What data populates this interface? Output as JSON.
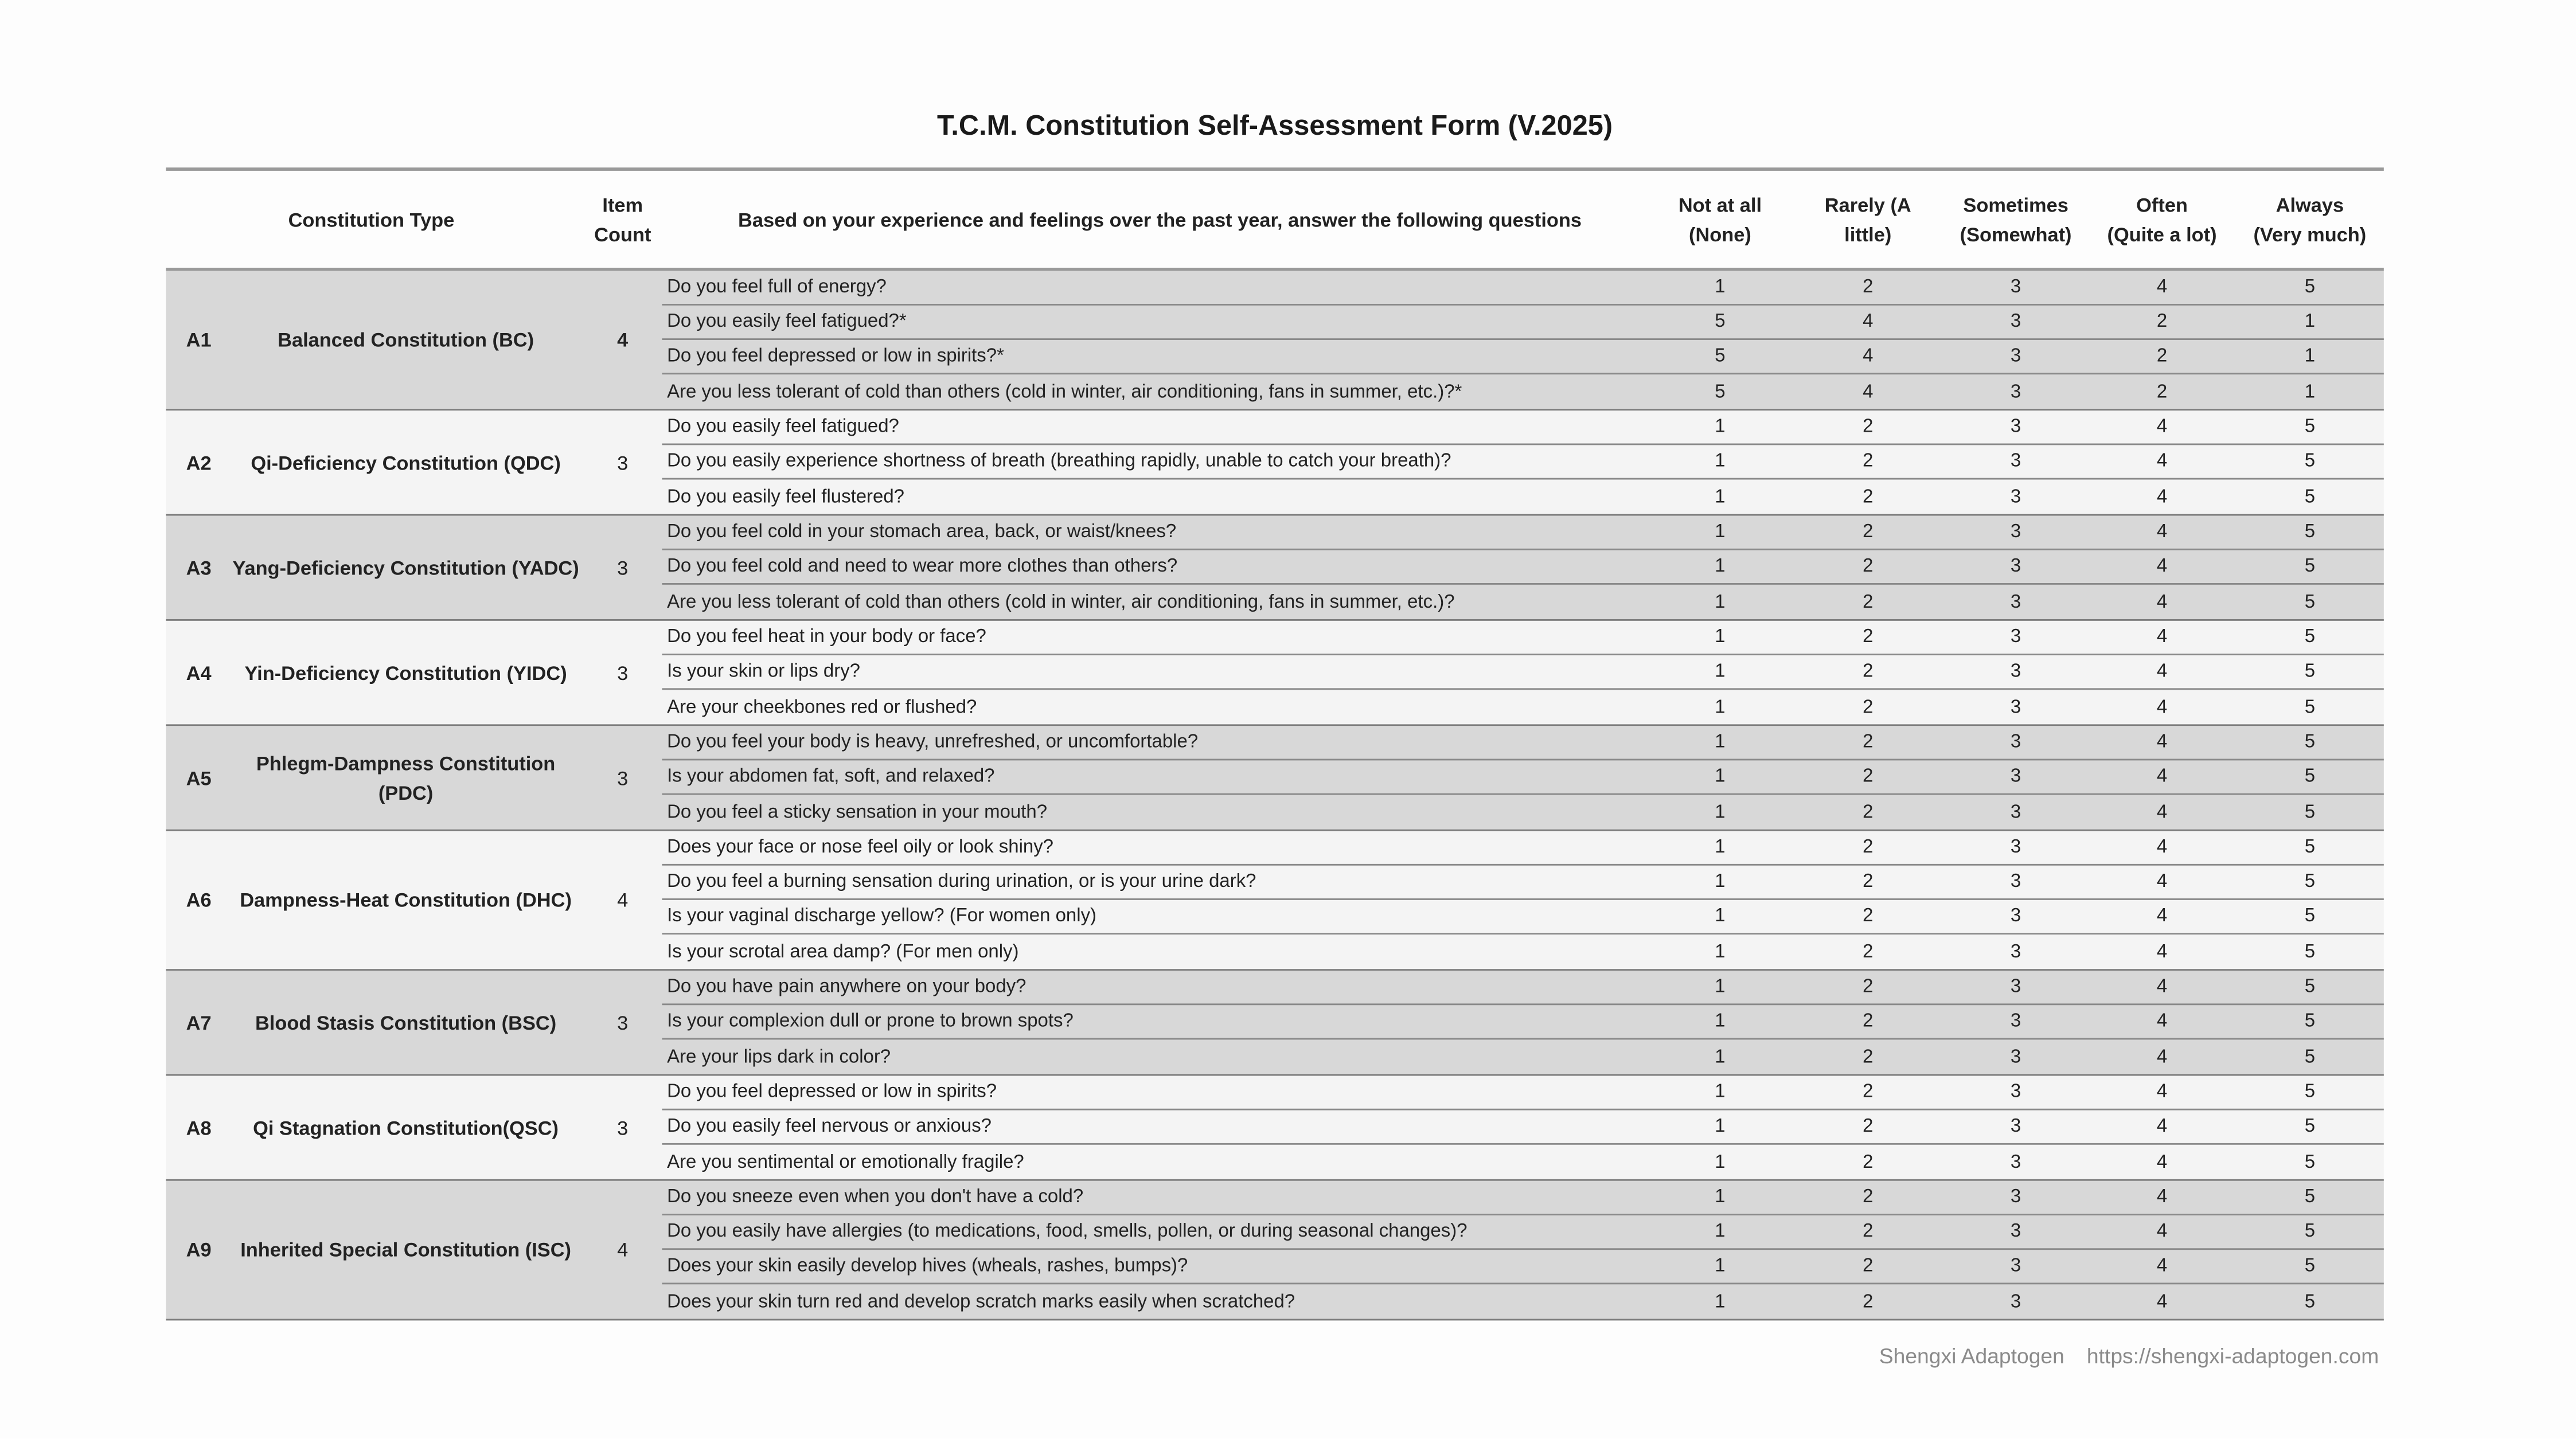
{
  "title": "T.C.M. Constitution Self-Assessment Form (V.2025)",
  "headers": {
    "type": "Constitution Type",
    "count_1": "Item",
    "count_2": "Count",
    "question": "Based on your experience and feelings over the past year, answer the following questions",
    "scale": [
      [
        "Not at all",
        "(None)"
      ],
      [
        "Rarely (A",
        "little)"
      ],
      [
        "Sometimes",
        "(Somewhat)"
      ],
      [
        "Often",
        "(Quite a lot)"
      ],
      [
        "Always",
        "(Very much)"
      ]
    ]
  },
  "groups": [
    {
      "code": "A1",
      "type": "Balanced Constitution (BC)",
      "count": "4",
      "questions": [
        {
          "text": "Do you feel full of energy?",
          "scores": [
            "1",
            "2",
            "3",
            "4",
            "5"
          ]
        },
        {
          "text": "Do you easily feel fatigued?*",
          "scores": [
            "5",
            "4",
            "3",
            "2",
            "1"
          ]
        },
        {
          "text": "Do you feel depressed or low in spirits?*",
          "scores": [
            "5",
            "4",
            "3",
            "2",
            "1"
          ]
        },
        {
          "text": "Are you less tolerant of cold than others (cold in winter, air conditioning, fans in summer, etc.)?*",
          "scores": [
            "5",
            "4",
            "3",
            "2",
            "1"
          ]
        }
      ]
    },
    {
      "code": "A2",
      "type": "Qi-Deficiency Constitution (QDC)",
      "count": "3",
      "questions": [
        {
          "text": "Do you easily feel fatigued?",
          "scores": [
            "1",
            "2",
            "3",
            "4",
            "5"
          ]
        },
        {
          "text": "Do you easily experience shortness of breath (breathing rapidly, unable to catch your breath)?",
          "scores": [
            "1",
            "2",
            "3",
            "4",
            "5"
          ]
        },
        {
          "text": "Do you easily feel flustered?",
          "scores": [
            "1",
            "2",
            "3",
            "4",
            "5"
          ]
        }
      ]
    },
    {
      "code": "A3",
      "type": "Yang-Deficiency Constitution (YADC)",
      "count": "3",
      "questions": [
        {
          "text": "Do you feel cold in your stomach area, back, or waist/knees?",
          "scores": [
            "1",
            "2",
            "3",
            "4",
            "5"
          ]
        },
        {
          "text": "Do you feel cold and need to wear more clothes than others?",
          "scores": [
            "1",
            "2",
            "3",
            "4",
            "5"
          ]
        },
        {
          "text": "Are you less tolerant of cold than others (cold in winter, air conditioning, fans in summer, etc.)?",
          "scores": [
            "1",
            "2",
            "3",
            "4",
            "5"
          ]
        }
      ]
    },
    {
      "code": "A4",
      "type": "Yin-Deficiency Constitution (YIDC)",
      "count": "3",
      "questions": [
        {
          "text": "Do you feel heat in your body or face?",
          "scores": [
            "1",
            "2",
            "3",
            "4",
            "5"
          ]
        },
        {
          "text": "Is your skin or lips dry?",
          "scores": [
            "1",
            "2",
            "3",
            "4",
            "5"
          ]
        },
        {
          "text": "Are your cheekbones red or flushed?",
          "scores": [
            "1",
            "2",
            "3",
            "4",
            "5"
          ]
        }
      ]
    },
    {
      "code": "A5",
      "type": "Phlegm-Dampness Constitution (PDC)",
      "count": "3",
      "questions": [
        {
          "text": "Do you feel your body is heavy, unrefreshed, or uncomfortable?",
          "scores": [
            "1",
            "2",
            "3",
            "4",
            "5"
          ]
        },
        {
          "text": "Is your abdomen fat, soft, and relaxed?",
          "scores": [
            "1",
            "2",
            "3",
            "4",
            "5"
          ]
        },
        {
          "text": "Do you feel a sticky sensation in your mouth?",
          "scores": [
            "1",
            "2",
            "3",
            "4",
            "5"
          ]
        }
      ]
    },
    {
      "code": "A6",
      "type": "Dampness-Heat Constitution (DHC)",
      "count": "4",
      "questions": [
        {
          "text": "Does your face or nose feel oily or look shiny?",
          "scores": [
            "1",
            "2",
            "3",
            "4",
            "5"
          ]
        },
        {
          "text": "Do you feel a burning sensation during urination, or is your urine dark?",
          "scores": [
            "1",
            "2",
            "3",
            "4",
            "5"
          ]
        },
        {
          "text": "Is your vaginal discharge yellow? (For women only)",
          "scores": [
            "1",
            "2",
            "3",
            "4",
            "5"
          ]
        },
        {
          "text": "Is your scrotal area damp? (For men only)",
          "scores": [
            "1",
            "2",
            "3",
            "4",
            "5"
          ]
        }
      ]
    },
    {
      "code": "A7",
      "type": "Blood Stasis Constitution (BSC)",
      "count": "3",
      "questions": [
        {
          "text": "Do you have pain anywhere on your body?",
          "scores": [
            "1",
            "2",
            "3",
            "4",
            "5"
          ]
        },
        {
          "text": "Is your complexion dull or prone to brown spots?",
          "scores": [
            "1",
            "2",
            "3",
            "4",
            "5"
          ]
        },
        {
          "text": "Are your lips dark in color?",
          "scores": [
            "1",
            "2",
            "3",
            "4",
            "5"
          ]
        }
      ]
    },
    {
      "code": "A8",
      "type": "Qi Stagnation Constitution(QSC)",
      "count": "3",
      "questions": [
        {
          "text": "Do you feel depressed or low in spirits?",
          "scores": [
            "1",
            "2",
            "3",
            "4",
            "5"
          ]
        },
        {
          "text": "Do you easily feel nervous or anxious?",
          "scores": [
            "1",
            "2",
            "3",
            "4",
            "5"
          ]
        },
        {
          "text": "Are you sentimental or emotionally fragile?",
          "scores": [
            "1",
            "2",
            "3",
            "4",
            "5"
          ]
        }
      ]
    },
    {
      "code": "A9",
      "type": "Inherited Special Constitution (ISC)",
      "count": "4",
      "questions": [
        {
          "text": "Do you sneeze even when you don't have a cold?",
          "scores": [
            "1",
            "2",
            "3",
            "4",
            "5"
          ]
        },
        {
          "text": "Do you easily have allergies (to medications, food, smells, pollen, or during seasonal changes)?",
          "scores": [
            "1",
            "2",
            "3",
            "4",
            "5"
          ]
        },
        {
          "text": "Does your skin easily develop hives (wheals, rashes, bumps)?",
          "scores": [
            "1",
            "2",
            "3",
            "4",
            "5"
          ]
        },
        {
          "text": "Does your skin turn red and develop scratch marks easily when scratched?",
          "scores": [
            "1",
            "2",
            "3",
            "4",
            "5"
          ]
        }
      ]
    }
  ],
  "footer": {
    "brand": "Shengxi Adaptogen",
    "url": "https://shengxi-adaptogen.com"
  }
}
